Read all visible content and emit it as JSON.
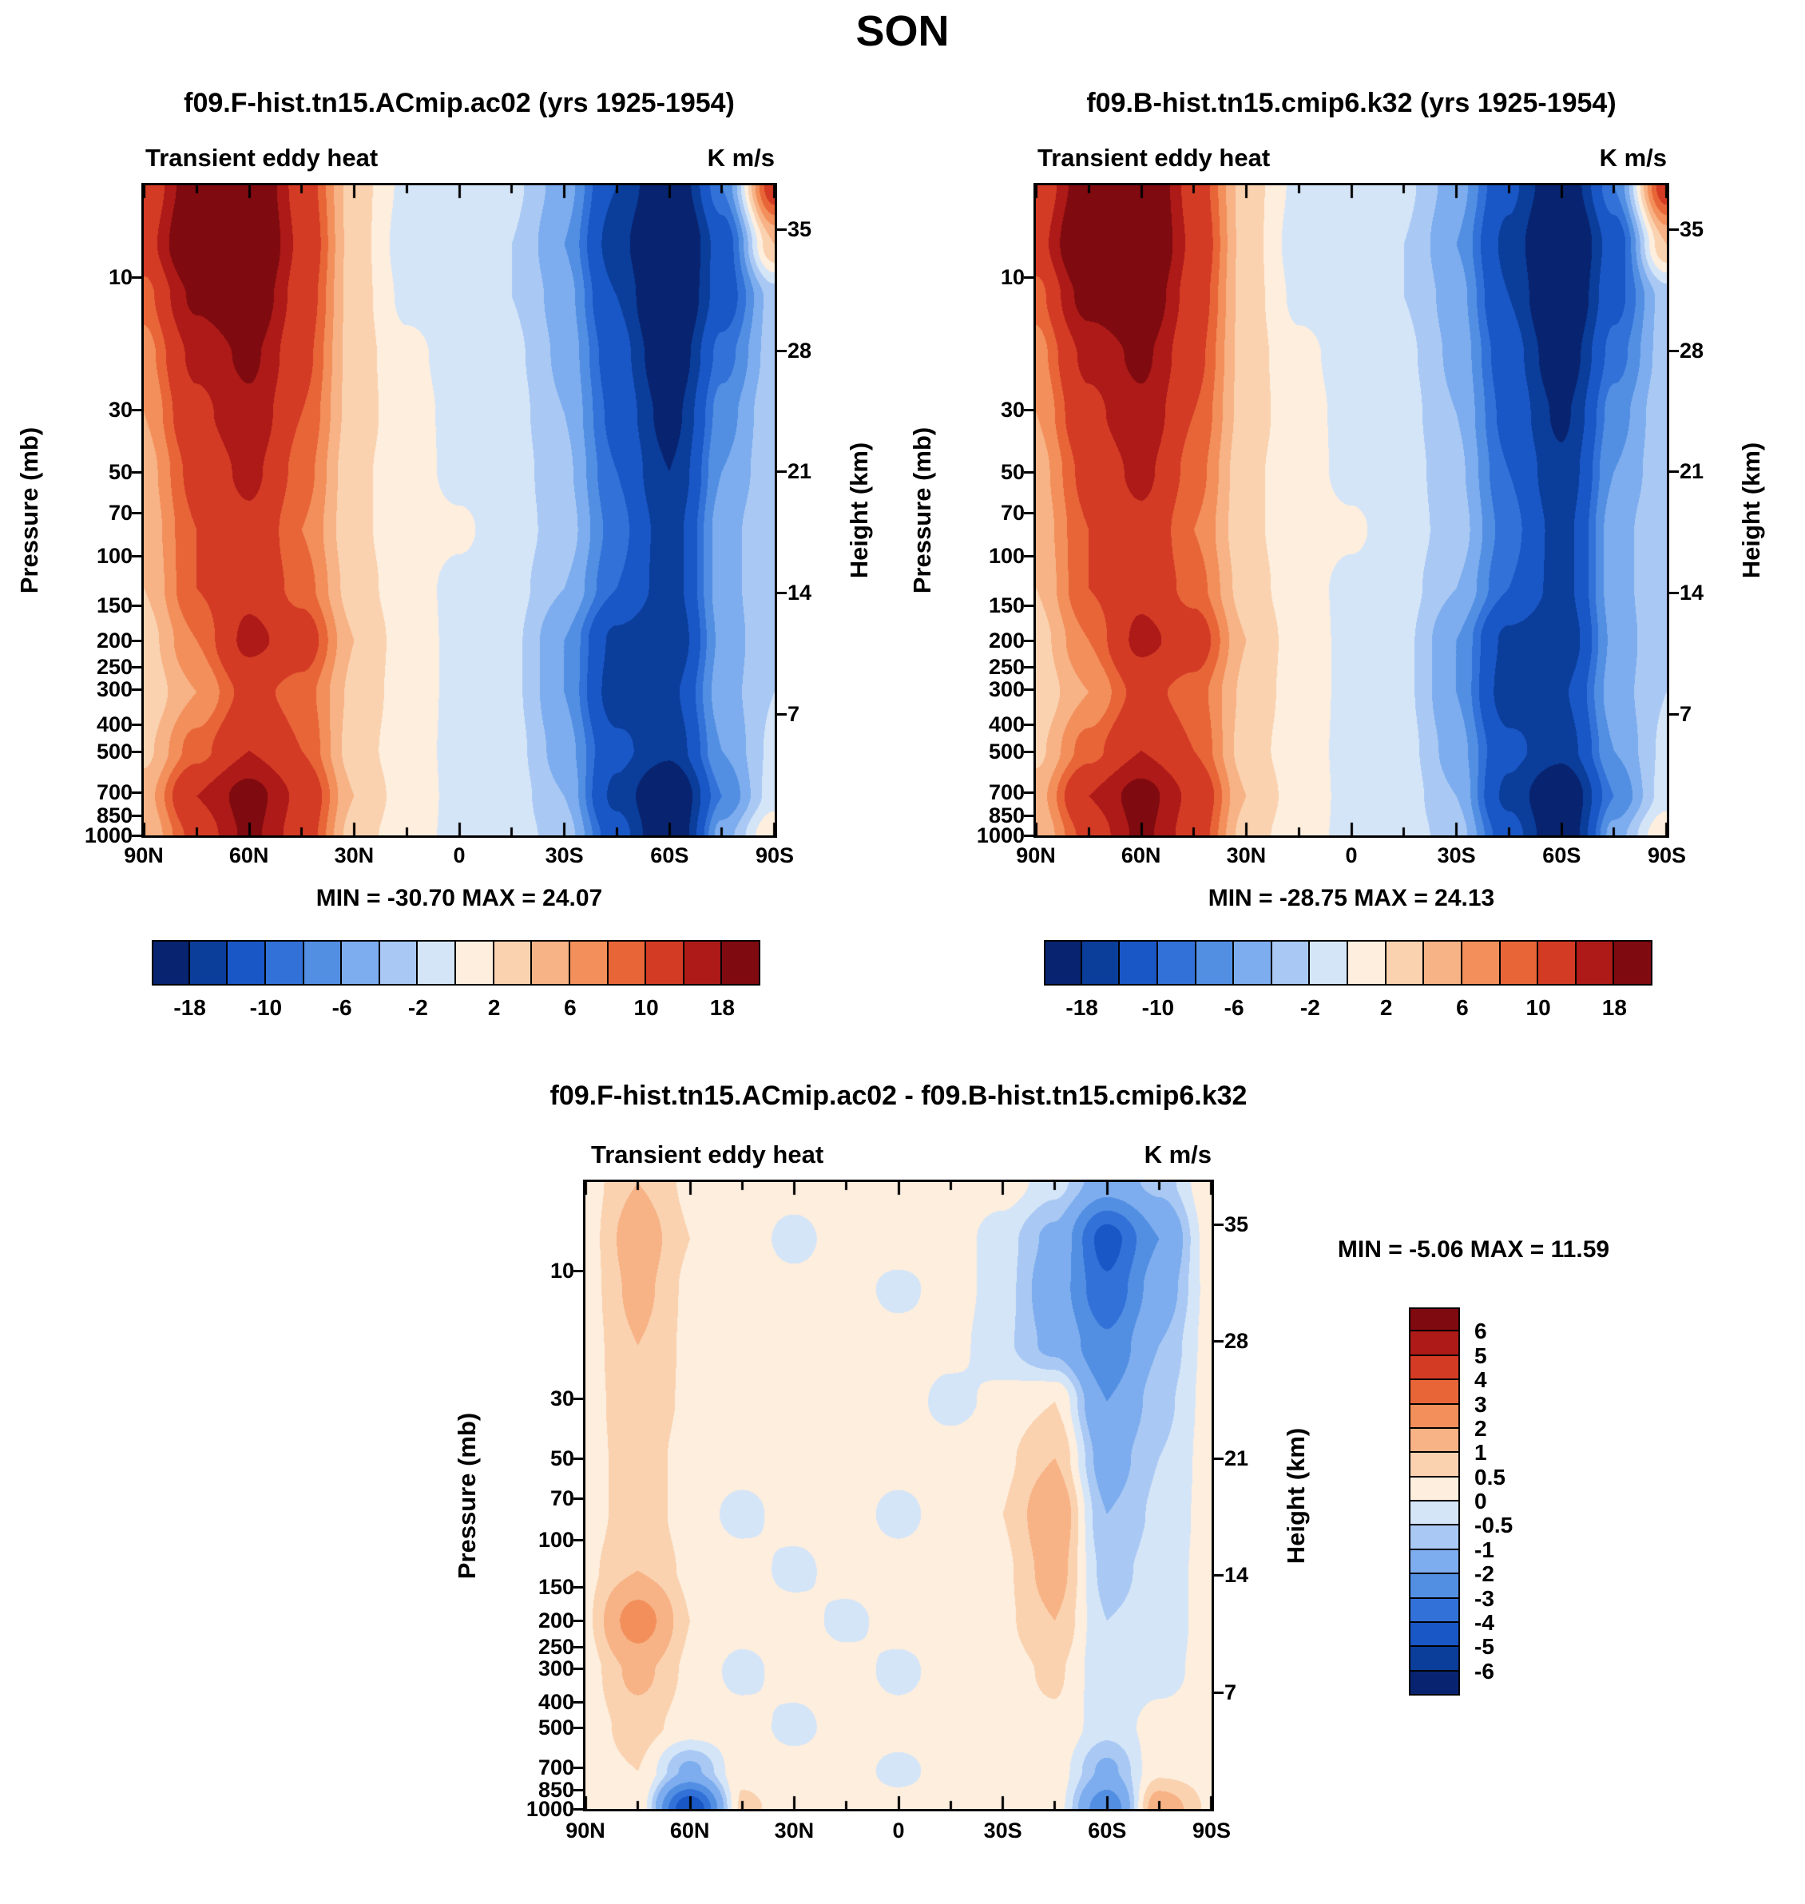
{
  "title": "SON",
  "panels": [
    {
      "title": "f09.F-hist.tn15.ACmip.ac02 (yrs 1925-1954)",
      "field_title": "Transient eddy heat",
      "units": "K m/s",
      "stats": "MIN = -30.70   MAX =  24.07"
    },
    {
      "title": "f09.B-hist.tn15.cmip6.k32 (yrs 1925-1954)",
      "field_title": "Transient eddy heat",
      "units": "K m/s",
      "stats": "MIN = -28.75   MAX =  24.13"
    },
    {
      "title": "f09.F-hist.tn15.ACmip.ac02 - f09.B-hist.tn15.cmip6.k32",
      "field_title": "Transient eddy heat",
      "units": "K m/s",
      "stats": "MIN =  -5.06   MAX =  11.59"
    }
  ],
  "axes": {
    "pressure_label": "Pressure (mb)",
    "height_label": "Height (km)",
    "pressure_ticks": [
      "10",
      "30",
      "50",
      "70",
      "100",
      "150",
      "200",
      "250",
      "300",
      "400",
      "500",
      "700",
      "850",
      "1000"
    ],
    "height_ticks": [
      "35",
      "28",
      "21",
      "14",
      "7"
    ],
    "lat_labels": [
      "90N",
      "60N",
      "30N",
      "0",
      "30S",
      "60S",
      "90S"
    ]
  },
  "palette_blue_red": [
    "#082470",
    "#0b3d9b",
    "#1a57c6",
    "#3272d8",
    "#528fe3",
    "#7dadee",
    "#a9c9f4",
    "#d5e5f8",
    "#fdeede",
    "#fad2b0",
    "#f7b285",
    "#f28f5b",
    "#e86538",
    "#d43b25",
    "#ad1a17",
    "#7f0a10"
  ],
  "colorbars": {
    "main": {
      "labels": [
        "-18",
        "-10",
        "-6",
        "-2",
        "2",
        "6",
        "10",
        "18"
      ],
      "label_edge_indices": [
        1,
        3,
        5,
        7,
        9,
        11,
        13,
        15
      ]
    },
    "diff": {
      "labels_top_to_bottom": [
        "6",
        "5",
        "4",
        "3",
        "2",
        "1",
        "0.5",
        "0",
        "-0.5",
        "-1",
        "-2",
        "-3",
        "-4",
        "-5",
        "-6"
      ]
    }
  },
  "chart_data": [
    {
      "type": "heatmap",
      "name": "f09.F-hist.tn15.ACmip.ac02 Transient eddy heat",
      "units": "K m/s",
      "min": -30.7,
      "max": 24.07,
      "x_lat_deg": [
        90,
        75,
        60,
        45,
        30,
        15,
        0,
        -15,
        -30,
        -45,
        -60,
        -75,
        -90
      ],
      "rows_t": [
        0,
        0.09,
        0.17,
        0.26,
        0.35,
        0.44,
        0.53,
        0.62,
        0.7,
        0.78,
        0.87,
        0.94,
        1.0
      ],
      "levels": [
        -18,
        -14,
        -10,
        -8,
        -6,
        -4,
        -2,
        0,
        2,
        4,
        6,
        8,
        10,
        14,
        18
      ],
      "values": [
        [
          10,
          22,
          25,
          12,
          3,
          -0.5,
          -1,
          -1.5,
          -5,
          -14,
          -24,
          -8,
          12
        ],
        [
          12,
          25,
          27,
          13,
          3,
          -1,
          -1,
          -2,
          -6,
          -16,
          -29,
          -12,
          4
        ],
        [
          9,
          19,
          23,
          12,
          3,
          -0.5,
          -1,
          -2,
          -5,
          -14,
          -27,
          -12,
          -3
        ],
        [
          7,
          15,
          19,
          11,
          3,
          0.5,
          -0.8,
          -1.5,
          -4.5,
          -12,
          -23,
          -9,
          -3
        ],
        [
          6,
          13,
          17,
          10,
          3,
          0.8,
          -0.6,
          -1.2,
          -4,
          -11,
          -20,
          -7,
          -2.5
        ],
        [
          5,
          11,
          15,
          9,
          2.5,
          0.8,
          -0.5,
          -1,
          -3.5,
          -10,
          -18,
          -6,
          -2.5
        ],
        [
          4.5,
          10,
          13,
          8,
          2.5,
          0.8,
          0.3,
          -1,
          -3,
          -9,
          -16,
          -5,
          -2
        ],
        [
          4,
          10,
          13,
          9,
          3,
          0.8,
          -0.5,
          -1.2,
          -4,
          -10,
          -16,
          -5,
          -2
        ],
        [
          3,
          8,
          15,
          12,
          4,
          1,
          -0.5,
          -1.5,
          -6,
          -15,
          -18,
          -5.5,
          -2
        ],
        [
          2.5,
          6,
          11,
          9,
          3.5,
          1,
          -0.5,
          -1.5,
          -6,
          -16,
          -15,
          -5,
          -2
        ],
        [
          3.5,
          9,
          14,
          10,
          3,
          0.8,
          -0.5,
          -1.2,
          -5,
          -13,
          -17,
          -6,
          -1.5
        ],
        [
          5,
          14,
          20,
          13,
          4,
          1,
          -0.5,
          -1,
          -4,
          -15,
          -25,
          -8,
          -1
        ],
        [
          4,
          11,
          19,
          12,
          3,
          0.8,
          -0.5,
          -1,
          -3,
          -12,
          -24,
          -5,
          2
        ]
      ]
    },
    {
      "type": "heatmap",
      "name": "f09.B-hist.tn15.cmip6.k32 Transient eddy heat",
      "units": "K m/s",
      "min": -28.75,
      "max": 24.13,
      "x_lat_deg": [
        90,
        75,
        60,
        45,
        30,
        15,
        0,
        -15,
        -30,
        -45,
        -60,
        -75,
        -90
      ],
      "rows_t": [
        0,
        0.09,
        0.17,
        0.26,
        0.35,
        0.44,
        0.53,
        0.62,
        0.7,
        0.78,
        0.87,
        0.94,
        1.0
      ],
      "levels": [
        -18,
        -14,
        -10,
        -8,
        -6,
        -4,
        -2,
        0,
        2,
        4,
        6,
        8,
        10,
        14,
        18
      ],
      "values": [
        [
          10,
          22,
          26,
          12,
          3,
          -0.5,
          -1,
          -1.5,
          -5,
          -13,
          -23,
          -8,
          12
        ],
        [
          12,
          26,
          27,
          13,
          3,
          -1,
          -1,
          -2,
          -6,
          -15,
          -28,
          -12,
          4
        ],
        [
          9,
          20,
          23,
          12,
          3,
          -0.5,
          -1,
          -2,
          -5,
          -14,
          -26,
          -11,
          -3
        ],
        [
          7,
          15,
          19,
          11,
          3,
          0.5,
          -0.8,
          -1.5,
          -4.5,
          -12,
          -22,
          -9,
          -3
        ],
        [
          6,
          13,
          17,
          10,
          3,
          0.8,
          -0.6,
          -1.2,
          -4,
          -11,
          -19,
          -7,
          -2.5
        ],
        [
          5,
          11,
          15,
          9,
          2.5,
          0.8,
          -0.5,
          -1,
          -3.5,
          -10,
          -17,
          -6,
          -2.5
        ],
        [
          4.5,
          10,
          13,
          8,
          2.5,
          0.8,
          0.3,
          -1,
          -3,
          -9,
          -15.5,
          -5,
          -2
        ],
        [
          4,
          10,
          13,
          9,
          3,
          0.8,
          -0.5,
          -1.2,
          -4,
          -10,
          -15.5,
          -5,
          -2
        ],
        [
          3,
          8,
          15,
          12,
          4,
          1,
          -0.5,
          -1.5,
          -6,
          -15,
          -17.5,
          -5.5,
          -2
        ],
        [
          2.5,
          6,
          11,
          9,
          3.5,
          1,
          -0.5,
          -1.5,
          -6,
          -16,
          -14.5,
          -5,
          -2
        ],
        [
          3.5,
          9,
          14,
          10,
          3,
          0.8,
          -0.5,
          -1.2,
          -5,
          -13,
          -16.5,
          -6,
          -1.5
        ],
        [
          5,
          14,
          20,
          13,
          4,
          1,
          -0.5,
          -1,
          -4,
          -15,
          -24,
          -8,
          -1
        ],
        [
          4,
          11,
          19,
          12,
          3,
          0.8,
          -0.5,
          -1,
          -3,
          -12,
          -23,
          -5,
          2
        ]
      ]
    },
    {
      "type": "heatmap",
      "name": "Difference (ACmip.ac02 - cmip6.k32) Transient eddy heat",
      "units": "K m/s",
      "min": -5.06,
      "max": 11.59,
      "x_lat_deg": [
        90,
        75,
        60,
        45,
        30,
        15,
        0,
        -15,
        -30,
        -45,
        -60,
        -75,
        -90
      ],
      "rows_t": [
        0,
        0.09,
        0.17,
        0.26,
        0.35,
        0.44,
        0.53,
        0.62,
        0.7,
        0.78,
        0.87,
        0.94,
        1.0
      ],
      "levels": [
        -6,
        -5,
        -4,
        -3,
        -2,
        -1,
        -0.5,
        0,
        0.5,
        1,
        2,
        3,
        4,
        5,
        6
      ],
      "values": [
        [
          0.3,
          1.0,
          0.4,
          0.3,
          0.3,
          0.4,
          0.3,
          0.4,
          0.3,
          -0.3,
          -1.5,
          -0.8,
          0.4
        ],
        [
          0.3,
          1.4,
          0.5,
          0.3,
          -0.2,
          0.3,
          0.4,
          0.3,
          -0.3,
          -1.2,
          -4.5,
          -2.0,
          0.3
        ],
        [
          0.3,
          1.2,
          0.4,
          0.3,
          0.2,
          0.3,
          -0.2,
          0.3,
          -0.3,
          -1.5,
          -3.8,
          -1.5,
          0.2
        ],
        [
          0.3,
          1.0,
          0.4,
          0.3,
          0.3,
          0.3,
          0.3,
          0.2,
          -0.4,
          -1.2,
          -2.8,
          -1.0,
          0.2
        ],
        [
          0.3,
          0.9,
          0.4,
          0.3,
          0.3,
          0.3,
          0.3,
          -0.2,
          0.2,
          0.5,
          -2.0,
          -0.7,
          0.2
        ],
        [
          0.3,
          0.8,
          0.3,
          0.3,
          0.3,
          0.3,
          0.3,
          0.3,
          0.4,
          1.0,
          -1.4,
          -0.5,
          0.2
        ],
        [
          0.3,
          0.8,
          0.3,
          -0.2,
          0.3,
          0.3,
          -0.2,
          0.3,
          0.5,
          1.6,
          -1.0,
          -0.4,
          0.2
        ],
        [
          0.4,
          1.0,
          0.4,
          0.3,
          -0.2,
          0.3,
          0.3,
          0.3,
          0.4,
          1.3,
          -0.7,
          -0.3,
          0.2
        ],
        [
          0.4,
          2.6,
          0.5,
          0.3,
          0.3,
          -0.2,
          0.3,
          0.3,
          0.4,
          1.0,
          -0.5,
          -0.3,
          0.2
        ],
        [
          0.3,
          1.2,
          0.4,
          -0.2,
          0.3,
          0.3,
          -0.2,
          0.3,
          0.3,
          0.6,
          -0.4,
          -0.2,
          0.2
        ],
        [
          0.3,
          0.7,
          0.3,
          0.3,
          -0.2,
          0.3,
          0.3,
          0.3,
          0.3,
          0.4,
          -0.3,
          0.2,
          0.2
        ],
        [
          0.3,
          0.5,
          -1.2,
          0.4,
          0.3,
          0.3,
          -0.2,
          0.3,
          0.3,
          0.3,
          -1.2,
          0.4,
          0.3
        ],
        [
          0.3,
          0.4,
          -5.0,
          0.6,
          0.3,
          0.3,
          0.3,
          0.3,
          0.3,
          0.3,
          -2.8,
          1.5,
          0.4
        ]
      ]
    }
  ]
}
